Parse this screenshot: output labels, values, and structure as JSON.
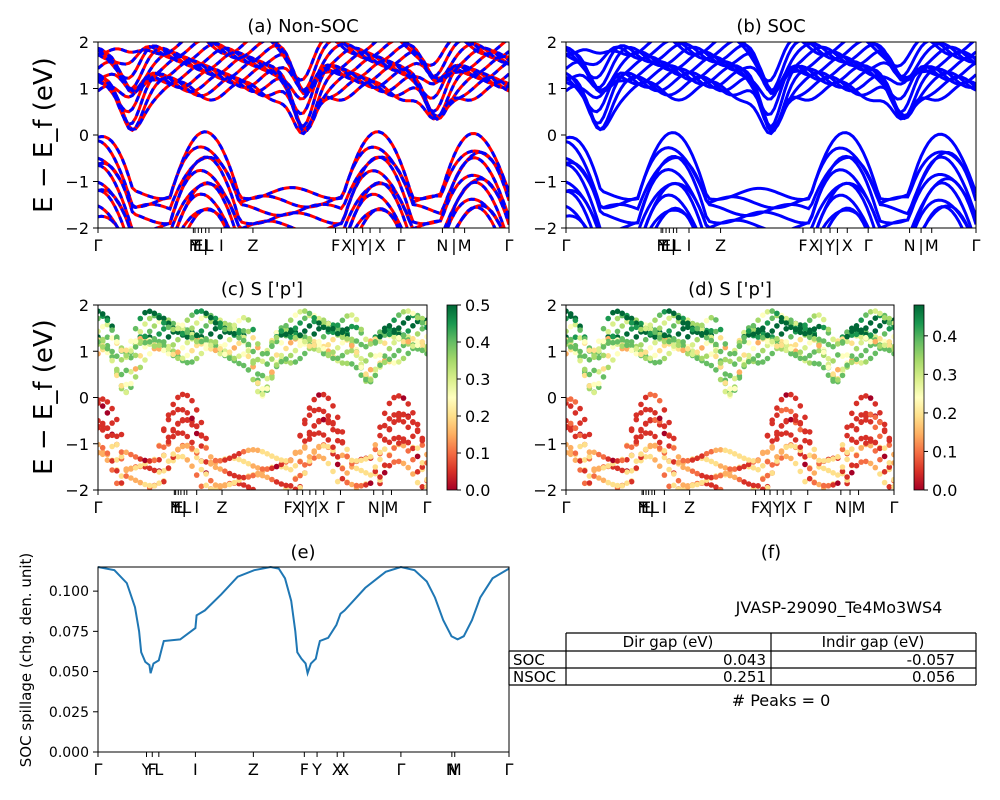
{
  "chart_data": [
    {
      "panel": "a",
      "type": "line",
      "title": "(a) Non-SOC",
      "ylabel": "E − E_f (eV)",
      "ylim": [
        -2,
        2
      ],
      "yticks": [
        "2",
        "1",
        "0",
        "−1",
        "−2"
      ],
      "xticks": [
        {
          "x": 0,
          "label": "Γ"
        },
        {
          "x": 0.232,
          "label": "F"
        },
        {
          "x": 0.236,
          "label": "Y"
        },
        {
          "x": 0.244,
          "label": "E"
        },
        {
          "x": 0.252,
          "label": "L"
        },
        {
          "x": 0.262,
          "label": "|"
        },
        {
          "x": 0.27,
          "label": "L"
        },
        {
          "x": 0.3,
          "label": "I"
        },
        {
          "x": 0.377,
          "label": "Z"
        },
        {
          "x": 0.578,
          "label": "F"
        },
        {
          "x": 0.605,
          "label": "X"
        },
        {
          "x": 0.622,
          "label": "|"
        },
        {
          "x": 0.644,
          "label": "Y"
        },
        {
          "x": 0.662,
          "label": "|"
        },
        {
          "x": 0.686,
          "label": "X"
        },
        {
          "x": 0.737,
          "label": "Γ"
        },
        {
          "x": 0.838,
          "label": "N"
        },
        {
          "x": 0.866,
          "label": "|"
        },
        {
          "x": 0.892,
          "label": "M"
        },
        {
          "x": 1.0,
          "label": "Γ"
        }
      ],
      "series": [
        {
          "color": "#ff0000"
        },
        {
          "color": "#0000ff"
        }
      ]
    },
    {
      "panel": "b",
      "type": "line",
      "title": "(b) SOC",
      "ylim": [
        -2,
        2
      ],
      "yticks": [
        "2",
        "1",
        "0",
        "−1",
        "−2"
      ],
      "series": [
        {
          "color": "#0000ff"
        }
      ]
    },
    {
      "panel": "c",
      "type": "scatter",
      "title": "(c)  S ['p']",
      "ylabel": "E − E_f (eV)",
      "ylim": [
        -2,
        2
      ],
      "colorbar": {
        "range": [
          0.0,
          0.5
        ],
        "ticks": [
          "0.5",
          "0.4",
          "0.3",
          "0.2",
          "0.1",
          "0.0"
        ],
        "colormap": "RdYlGn"
      }
    },
    {
      "panel": "d",
      "type": "scatter",
      "title": "(d) S ['p']",
      "ylim": [
        -2,
        2
      ],
      "colorbar": {
        "range": [
          0.0,
          0.48
        ],
        "ticks": [
          "0.4",
          "0.3",
          "0.2",
          "0.1",
          "0.0"
        ],
        "colormap": "RdYlGn"
      }
    },
    {
      "panel": "e",
      "type": "line",
      "title": "(e)",
      "ylabel": "SOC spillage (chg. den. unit)",
      "ylim": [
        0,
        0.115
      ],
      "yticks": [
        "0.100",
        "0.075",
        "0.050",
        "0.025",
        "0.000"
      ],
      "xticks": [
        {
          "x": 0,
          "label": "Γ"
        },
        {
          "x": 0.118,
          "label": "Y"
        },
        {
          "x": 0.132,
          "label": "F"
        },
        {
          "x": 0.148,
          "label": "L"
        },
        {
          "x": 0.237,
          "label": "I"
        },
        {
          "x": 0.378,
          "label": "Z"
        },
        {
          "x": 0.502,
          "label": "F"
        },
        {
          "x": 0.533,
          "label": "Y"
        },
        {
          "x": 0.582,
          "label": "X"
        },
        {
          "x": 0.598,
          "label": "X"
        },
        {
          "x": 0.737,
          "label": "Γ"
        },
        {
          "x": 0.861,
          "label": "N"
        },
        {
          "x": 0.868,
          "label": "M"
        },
        {
          "x": 1.0,
          "label": "Γ"
        }
      ],
      "series": [
        {
          "color": "#1f77b4",
          "points": [
            [
              0,
              0.115
            ],
            [
              0.04,
              0.113
            ],
            [
              0.07,
              0.105
            ],
            [
              0.09,
              0.09
            ],
            [
              0.1,
              0.075
            ],
            [
              0.105,
              0.062
            ],
            [
              0.115,
              0.056
            ],
            [
              0.125,
              0.054
            ],
            [
              0.128,
              0.049
            ],
            [
              0.135,
              0.055
            ],
            [
              0.148,
              0.057
            ],
            [
              0.155,
              0.064
            ],
            [
              0.16,
              0.069
            ],
            [
              0.2,
              0.07
            ],
            [
              0.237,
              0.077
            ],
            [
              0.24,
              0.085
            ],
            [
              0.26,
              0.088
            ],
            [
              0.3,
              0.098
            ],
            [
              0.34,
              0.109
            ],
            [
              0.38,
              0.113
            ],
            [
              0.42,
              0.115
            ],
            [
              0.44,
              0.114
            ],
            [
              0.455,
              0.108
            ],
            [
              0.47,
              0.094
            ],
            [
              0.48,
              0.075
            ],
            [
              0.485,
              0.062
            ],
            [
              0.495,
              0.058
            ],
            [
              0.505,
              0.055
            ],
            [
              0.51,
              0.049
            ],
            [
              0.518,
              0.055
            ],
            [
              0.53,
              0.058
            ],
            [
              0.535,
              0.064
            ],
            [
              0.54,
              0.069
            ],
            [
              0.56,
              0.071
            ],
            [
              0.58,
              0.079
            ],
            [
              0.59,
              0.086
            ],
            [
              0.6,
              0.088
            ],
            [
              0.65,
              0.102
            ],
            [
              0.7,
              0.112
            ],
            [
              0.737,
              0.115
            ],
            [
              0.77,
              0.113
            ],
            [
              0.8,
              0.106
            ],
            [
              0.82,
              0.096
            ],
            [
              0.84,
              0.082
            ],
            [
              0.86,
              0.072
            ],
            [
              0.875,
              0.07
            ],
            [
              0.89,
              0.072
            ],
            [
              0.91,
              0.082
            ],
            [
              0.93,
              0.096
            ],
            [
              0.96,
              0.108
            ],
            [
              1.0,
              0.114
            ]
          ]
        }
      ]
    }
  ],
  "info": {
    "title": "(f)",
    "material": "JVASP-29090_Te4Mo3WS4",
    "table": {
      "headers": [
        "Dir gap (eV)",
        "Indir gap (eV)"
      ],
      "rows": [
        {
          "label": "SOC",
          "dir": "0.043",
          "indir": "-0.057"
        },
        {
          "label": "NSOC",
          "dir": "0.251",
          "indir": "0.056"
        }
      ]
    },
    "peaks": "# Peaks = 0"
  }
}
